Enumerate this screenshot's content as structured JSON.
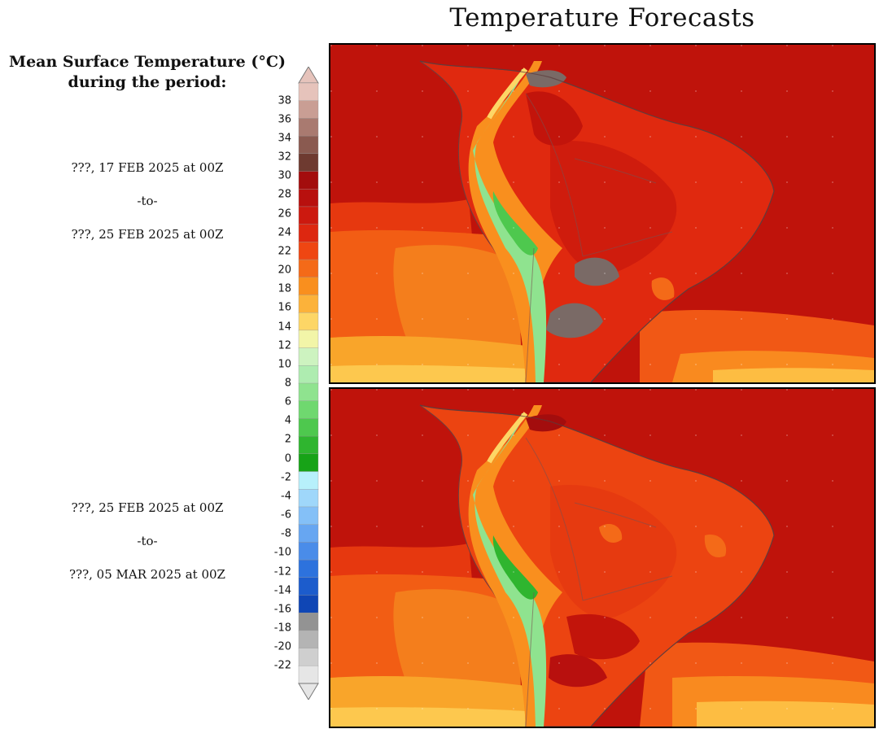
{
  "title": "Temperature Forecasts",
  "legend": {
    "heading_line1": "Mean Surface Temperature (°C)",
    "heading_line2": "during the period:",
    "ticks": [
      "38",
      "36",
      "34",
      "32",
      "30",
      "28",
      "26",
      "24",
      "22",
      "20",
      "18",
      "16",
      "14",
      "12",
      "10",
      "8",
      "6",
      "4",
      "2",
      "0",
      "-2",
      "-4",
      "-6",
      "-8",
      "-10",
      "-12",
      "-14",
      "-16",
      "-18",
      "-20",
      "-22"
    ],
    "colors": [
      "#e6c3bb",
      "#c99e94",
      "#a97a70",
      "#8a5a50",
      "#6e3a30",
      "#a30d0d",
      "#b8100e",
      "#cc190f",
      "#dd2710",
      "#ef4612",
      "#f46a18",
      "#f98f1e",
      "#fcb23a",
      "#fdd666",
      "#f2f5a8",
      "#cdf3c0",
      "#aeecb0",
      "#8fe38f",
      "#6fd86f",
      "#4ec84e",
      "#2fb52f",
      "#17a317",
      "#b7f0fb",
      "#9fd7fa",
      "#84c0f7",
      "#67a6f1",
      "#4a8ce9",
      "#2d72dd",
      "#1c5ccc",
      "#0f46b5",
      "#939393",
      "#b4b4b4",
      "#cfcfcf",
      "#e6e6e6"
    ]
  },
  "periods": [
    {
      "start": "???, 17 FEB 2025 at 00Z",
      "sep": "-to-",
      "end": "???, 25 FEB 2025 at 00Z"
    },
    {
      "start": "???, 25 FEB 2025 at 00Z",
      "sep": "-to-",
      "end": "???, 05 MAR 2025 at 00Z"
    }
  ]
}
